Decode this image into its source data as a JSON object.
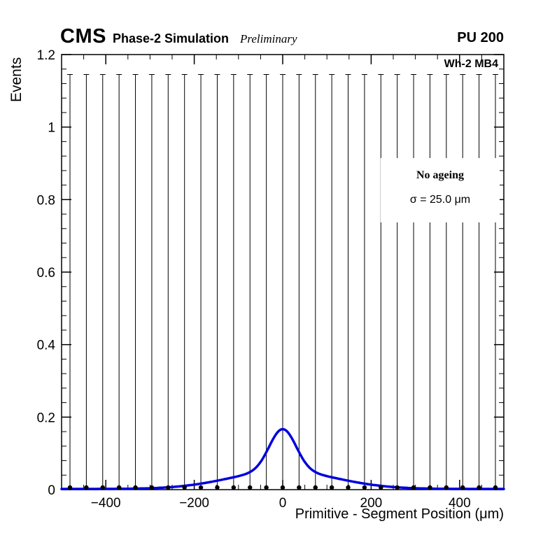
{
  "header": {
    "experiment": "CMS",
    "simulation": "Phase-2 Simulation",
    "preliminary": "Preliminary",
    "pileup": "PU 200"
  },
  "plot": {
    "chamber_label": "Wh-2 MB4",
    "annotation_line1": "No ageing",
    "annotation_line2": "σ = 25.0 μm"
  },
  "chart_data": {
    "type": "scatter",
    "title": "",
    "xlabel": "Primitive - Segment Position (μm)",
    "ylabel": "Events",
    "xlim": [
      -500,
      500
    ],
    "ylim": [
      0,
      1.2
    ],
    "x_major_ticks": [
      -400,
      -200,
      0,
      200,
      400
    ],
    "y_major_ticks": [
      0,
      0.2,
      0.4,
      0.6,
      0.8,
      1,
      1.2
    ],
    "x_minor_step": 50,
    "y_minor_step": 0.04,
    "grid": false,
    "legend": "none",
    "series": [
      {
        "name": "data-points",
        "type": "scatter-errorbar",
        "marker": "filled-circle",
        "color": "#000000",
        "x": [
          -481,
          -444,
          -407,
          -370,
          -333,
          -296,
          -259,
          -222,
          -185,
          -148,
          -111,
          -74,
          -37,
          0,
          37,
          74,
          111,
          148,
          185,
          222,
          259,
          296,
          333,
          370,
          407,
          444,
          481
        ],
        "y": [
          0,
          0,
          0,
          0,
          0,
          0,
          0,
          0,
          0,
          0,
          0,
          0,
          0,
          0,
          0,
          0,
          0,
          0,
          0,
          0,
          0,
          0,
          0,
          0,
          0,
          0,
          0
        ],
        "yerr_up": [
          1.145,
          1.145,
          1.145,
          1.145,
          1.145,
          1.145,
          1.145,
          1.145,
          1.145,
          1.145,
          1.145,
          1.145,
          1.145,
          1.145,
          1.145,
          1.145,
          1.145,
          1.145,
          1.145,
          1.145,
          1.145,
          1.145,
          1.145,
          1.145,
          1.145,
          1.145,
          1.145
        ]
      },
      {
        "name": "fit-curve",
        "type": "line",
        "color": "#0000dd",
        "model": "sum-of-gaussians",
        "components": [
          {
            "amplitude": 0.115,
            "mean": 0,
            "sigma": 30
          },
          {
            "amplitude": 0.05,
            "mean": 0,
            "sigma": 118
          }
        ],
        "peak_value": 0.165,
        "fit_sigma_um": 25.0
      }
    ]
  }
}
